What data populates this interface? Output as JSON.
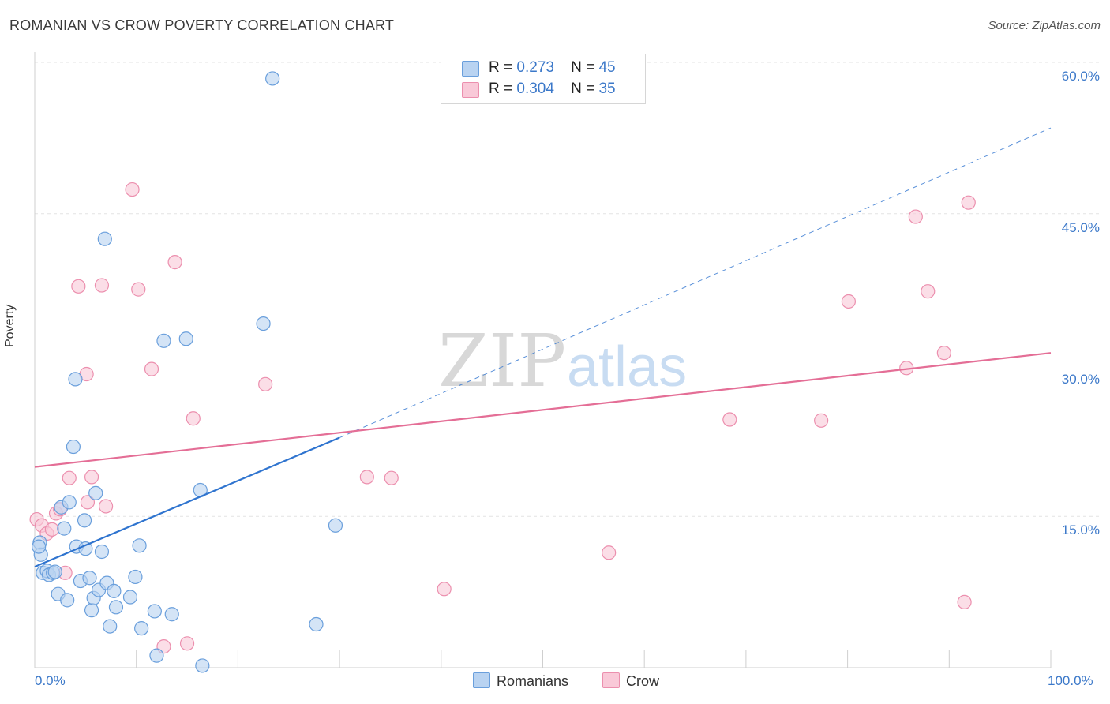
{
  "title": "ROMANIAN VS CROW POVERTY CORRELATION CHART",
  "source": "Source: ZipAtlas.com",
  "watermark": {
    "zip": "ZIP",
    "atlas": "atlas"
  },
  "colors": {
    "blue_fill": "#b9d3f1",
    "blue_stroke": "#6a9fdc",
    "blue_line": "#2f74cf",
    "pink_fill": "#f9c9d8",
    "pink_stroke": "#ec8fae",
    "pink_line": "#e46e96",
    "axis_text": "#3b78c9",
    "grid": "#e3e3e3"
  },
  "legend": {
    "rows": [
      {
        "r_label": "R =",
        "r_value": "0.273",
        "n_label": "N =",
        "n_value": "45"
      },
      {
        "r_label": "R =",
        "r_value": "0.304",
        "n_label": "N =",
        "n_value": "35"
      }
    ]
  },
  "bottom_legend": [
    "Romanians",
    "Crow"
  ],
  "chart_data": {
    "type": "scatter",
    "title": "ROMANIAN VS CROW POVERTY CORRELATION CHART",
    "xlabel": "",
    "ylabel": "Poverty",
    "xlim": [
      0,
      100
    ],
    "ylim": [
      0,
      60
    ],
    "x_tick_labels": [
      "0.0%",
      "100.0%"
    ],
    "y_ticks": [
      15,
      30,
      45,
      60
    ],
    "y_tick_labels": [
      "15.0%",
      "30.0%",
      "45.0%",
      "60.0%"
    ],
    "grid": true,
    "legend_position": "top-center",
    "series": [
      {
        "name": "Romanians",
        "r": 0.273,
        "n": 45,
        "points": [
          [
            0.5,
            12.4
          ],
          [
            0.6,
            11.2
          ],
          [
            0.8,
            9.4
          ],
          [
            1.2,
            9.6
          ],
          [
            1.4,
            9.2
          ],
          [
            1.8,
            9.4
          ],
          [
            2.0,
            9.5
          ],
          [
            2.3,
            7.3
          ],
          [
            2.6,
            15.9
          ],
          [
            2.9,
            13.8
          ],
          [
            3.2,
            6.7
          ],
          [
            3.4,
            16.4
          ],
          [
            3.8,
            21.9
          ],
          [
            4.0,
            28.6
          ],
          [
            4.1,
            12.0
          ],
          [
            4.5,
            8.6
          ],
          [
            4.9,
            14.6
          ],
          [
            5.0,
            11.8
          ],
          [
            5.4,
            8.9
          ],
          [
            5.6,
            5.7
          ],
          [
            5.8,
            6.9
          ],
          [
            6.0,
            17.3
          ],
          [
            6.3,
            7.7
          ],
          [
            6.6,
            11.5
          ],
          [
            6.9,
            42.5
          ],
          [
            7.1,
            8.4
          ],
          [
            7.4,
            4.1
          ],
          [
            7.8,
            7.6
          ],
          [
            8.0,
            6.0
          ],
          [
            9.4,
            7.0
          ],
          [
            9.9,
            9.0
          ],
          [
            10.3,
            12.1
          ],
          [
            10.5,
            3.9
          ],
          [
            11.8,
            5.6
          ],
          [
            12.0,
            1.2
          ],
          [
            12.7,
            32.4
          ],
          [
            13.5,
            5.3
          ],
          [
            14.9,
            32.6
          ],
          [
            16.3,
            17.6
          ],
          [
            16.5,
            0.2
          ],
          [
            22.5,
            34.1
          ],
          [
            23.4,
            58.4
          ],
          [
            27.7,
            4.3
          ],
          [
            29.6,
            14.1
          ],
          [
            0.4,
            12.0
          ]
        ]
      },
      {
        "name": "Crow",
        "r": 0.304,
        "n": 35,
        "points": [
          [
            0.2,
            14.7
          ],
          [
            0.7,
            14.1
          ],
          [
            1.2,
            13.3
          ],
          [
            1.7,
            13.7
          ],
          [
            2.1,
            15.3
          ],
          [
            2.5,
            15.7
          ],
          [
            3.0,
            9.4
          ],
          [
            3.4,
            18.8
          ],
          [
            4.3,
            37.8
          ],
          [
            5.1,
            29.1
          ],
          [
            5.2,
            16.4
          ],
          [
            5.6,
            18.9
          ],
          [
            6.6,
            37.9
          ],
          [
            7.0,
            16.0
          ],
          [
            9.6,
            47.4
          ],
          [
            10.2,
            37.5
          ],
          [
            11.5,
            29.6
          ],
          [
            12.7,
            2.1
          ],
          [
            13.8,
            40.2
          ],
          [
            15.0,
            2.4
          ],
          [
            15.6,
            24.7
          ],
          [
            22.7,
            28.1
          ],
          [
            32.7,
            18.9
          ],
          [
            35.1,
            18.8
          ],
          [
            40.3,
            7.8
          ],
          [
            56.5,
            11.4
          ],
          [
            68.4,
            24.6
          ],
          [
            77.4,
            24.5
          ],
          [
            80.1,
            36.3
          ],
          [
            85.8,
            29.7
          ],
          [
            86.7,
            44.7
          ],
          [
            87.9,
            37.3
          ],
          [
            89.5,
            31.2
          ],
          [
            91.5,
            6.5
          ],
          [
            91.9,
            46.1
          ]
        ]
      }
    ],
    "trend_lines": [
      {
        "series": "Romanians",
        "x": [
          0,
          30
        ],
        "y": [
          10.0,
          22.8
        ],
        "extension": {
          "x": [
            30,
            100
          ],
          "y": [
            22.8,
            53.5
          ],
          "style": "dashed"
        }
      },
      {
        "series": "Crow",
        "x": [
          0,
          100
        ],
        "y": [
          19.9,
          31.2
        ]
      }
    ]
  }
}
